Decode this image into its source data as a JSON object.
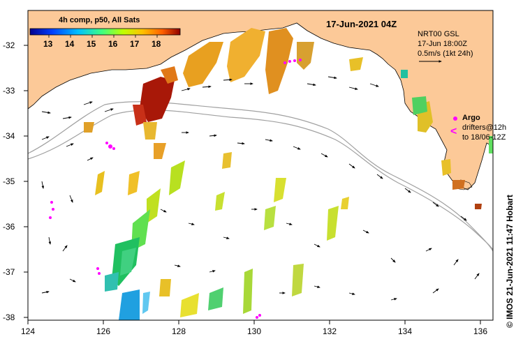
{
  "header": {
    "composite_label": "4h comp, p50, All Sats",
    "date_label": "17-Jun-2021 04Z"
  },
  "colorbar": {
    "ticks": [
      "13",
      "14",
      "15",
      "16",
      "17",
      "18"
    ],
    "colors": [
      "#00008f",
      "#0040ff",
      "#00c0ff",
      "#40ff80",
      "#c0ff00",
      "#ffc000",
      "#ff6000",
      "#8f0000"
    ]
  },
  "current_legend": {
    "model_label": "NRT00 GSL",
    "model_time": "17-Jun 18:00Z",
    "speed_label": "0.5m/s (1kt 24h)"
  },
  "argo_legend": {
    "argo_label": "Argo",
    "drifters_label": "drifters@12h",
    "drifters_range": "to 18/06-12Z"
  },
  "axes": {
    "x_ticks": [
      "124",
      "126",
      "128",
      "130",
      "132",
      "134",
      "136"
    ],
    "y_ticks": [
      "-32",
      "-33",
      "-34",
      "-35",
      "-36",
      "-37",
      "-38"
    ]
  },
  "credit": "© IMOS 21-Jun-2021 11:47 Hobart",
  "colors": {
    "land": "#fcc998",
    "arrow": "#000000",
    "isobath": "#a0a0a0",
    "argo": "#ff00ff"
  }
}
